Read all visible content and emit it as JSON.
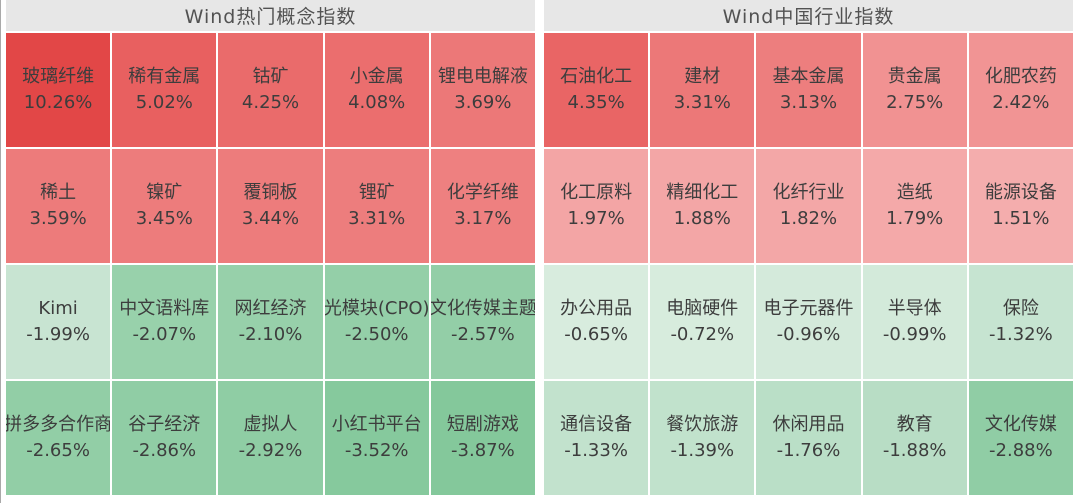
{
  "panels": [
    {
      "title": "Wind热门概念指数",
      "cells": [
        {
          "name": "玻璃纤维",
          "value": "10.26%",
          "color": "#e24747"
        },
        {
          "name": "稀有金属",
          "value": "5.02%",
          "color": "#e86060"
        },
        {
          "name": "钴矿",
          "value": "4.25%",
          "color": "#ea6b6b"
        },
        {
          "name": "小金属",
          "value": "4.08%",
          "color": "#eb6e6e"
        },
        {
          "name": "锂电电解液",
          "value": "3.69%",
          "color": "#ec7878"
        },
        {
          "name": "稀土",
          "value": "3.59%",
          "color": "#ed7b7b"
        },
        {
          "name": "镍矿",
          "value": "3.45%",
          "color": "#ed7c7c"
        },
        {
          "name": "覆铜板",
          "value": "3.44%",
          "color": "#ed7c7c"
        },
        {
          "name": "锂矿",
          "value": "3.31%",
          "color": "#ed7d7d"
        },
        {
          "name": "化学纤维",
          "value": "3.17%",
          "color": "#ee8080"
        },
        {
          "name": "Kimi",
          "value": "-1.99%",
          "color": "#c8e4d2"
        },
        {
          "name": "中文语料库",
          "value": "-2.07%",
          "color": "#98d1ab"
        },
        {
          "name": "网红经济",
          "value": "-2.10%",
          "color": "#97d0aa"
        },
        {
          "name": "光模块(CPO)",
          "value": "-2.50%",
          "color": "#94cfa8"
        },
        {
          "name": "文化传媒主题",
          "value": "-2.57%",
          "color": "#93cea7"
        },
        {
          "name": "拼多多合作商",
          "value": "-2.65%",
          "color": "#92cea6"
        },
        {
          "name": "谷子经济",
          "value": "-2.86%",
          "color": "#90cda5"
        },
        {
          "name": "虚拟人",
          "value": "-2.92%",
          "color": "#8fcda4"
        },
        {
          "name": "小红书平台",
          "value": "-3.52%",
          "color": "#86c99d"
        },
        {
          "name": "短剧游戏",
          "value": "-3.87%",
          "color": "#84c89b"
        }
      ]
    },
    {
      "title": "Wind中国行业指数",
      "cells": [
        {
          "name": "石油化工",
          "value": "4.35%",
          "color": "#e96565"
        },
        {
          "name": "建材",
          "value": "3.31%",
          "color": "#ec7878"
        },
        {
          "name": "基本金属",
          "value": "3.13%",
          "color": "#ed7e7e"
        },
        {
          "name": "贵金属",
          "value": "2.75%",
          "color": "#f19292"
        },
        {
          "name": "化肥农药",
          "value": "2.42%",
          "color": "#f19494"
        },
        {
          "name": "化工原料",
          "value": "1.97%",
          "color": "#f3a5a5"
        },
        {
          "name": "精细化工",
          "value": "1.88%",
          "color": "#f3a6a6"
        },
        {
          "name": "化纤行业",
          "value": "1.82%",
          "color": "#f3a7a7"
        },
        {
          "name": "造纸",
          "value": "1.79%",
          "color": "#f4a9a9"
        },
        {
          "name": "能源设备",
          "value": "1.51%",
          "color": "#f4adad"
        },
        {
          "name": "办公用品",
          "value": "-0.65%",
          "color": "#d8ecde"
        },
        {
          "name": "电脑硬件",
          "value": "-0.72%",
          "color": "#d7ecdd"
        },
        {
          "name": "电子元器件",
          "value": "-0.96%",
          "color": "#d4eadb"
        },
        {
          "name": "半导体",
          "value": "-0.99%",
          "color": "#d3eada"
        },
        {
          "name": "保险",
          "value": "-1.32%",
          "color": "#c6e4d1"
        },
        {
          "name": "通信设备",
          "value": "-1.33%",
          "color": "#c2e2cd"
        },
        {
          "name": "餐饮旅游",
          "value": "-1.39%",
          "color": "#c1e2cc"
        },
        {
          "name": "休闲用品",
          "value": "-1.76%",
          "color": "#badfc7"
        },
        {
          "name": "教育",
          "value": "-1.88%",
          "color": "#b8ddc5"
        },
        {
          "name": "文化传媒",
          "value": "-2.88%",
          "color": "#90cda5"
        }
      ]
    }
  ],
  "chart_data": [
    {
      "type": "heatmap",
      "title": "Wind热门概念指数",
      "layout": {
        "rows": 4,
        "cols": 5,
        "order": "row-major"
      },
      "value_unit": "%",
      "color_semantics": {
        "positive": "red shades (darker = larger gain)",
        "negative": "green shades (darker = larger loss)"
      },
      "categories": [
        "玻璃纤维",
        "稀有金属",
        "钴矿",
        "小金属",
        "锂电电解液",
        "稀土",
        "镍矿",
        "覆铜板",
        "锂矿",
        "化学纤维",
        "Kimi",
        "中文语料库",
        "网红经济",
        "光模块(CPO)",
        "文化传媒主题",
        "拼多多合作商",
        "谷子经济",
        "虚拟人",
        "小红书平台",
        "短剧游戏"
      ],
      "values": [
        10.26,
        5.02,
        4.25,
        4.08,
        3.69,
        3.59,
        3.45,
        3.44,
        3.31,
        3.17,
        -1.99,
        -2.07,
        -2.1,
        -2.5,
        -2.57,
        -2.65,
        -2.86,
        -2.92,
        -3.52,
        -3.87
      ]
    },
    {
      "type": "heatmap",
      "title": "Wind中国行业指数",
      "layout": {
        "rows": 4,
        "cols": 5,
        "order": "row-major"
      },
      "value_unit": "%",
      "color_semantics": {
        "positive": "red shades (darker = larger gain)",
        "negative": "green shades (darker = larger loss)"
      },
      "categories": [
        "石油化工",
        "建材",
        "基本金属",
        "贵金属",
        "化肥农药",
        "化工原料",
        "精细化工",
        "化纤行业",
        "造纸",
        "能源设备",
        "办公用品",
        "电脑硬件",
        "电子元器件",
        "半导体",
        "保险",
        "通信设备",
        "餐饮旅游",
        "休闲用品",
        "教育",
        "文化传媒"
      ],
      "values": [
        4.35,
        3.31,
        3.13,
        2.75,
        2.42,
        1.97,
        1.88,
        1.82,
        1.79,
        1.51,
        -0.65,
        -0.72,
        -0.96,
        -0.99,
        -1.32,
        -1.33,
        -1.39,
        -1.76,
        -1.88,
        -2.88
      ]
    }
  ]
}
